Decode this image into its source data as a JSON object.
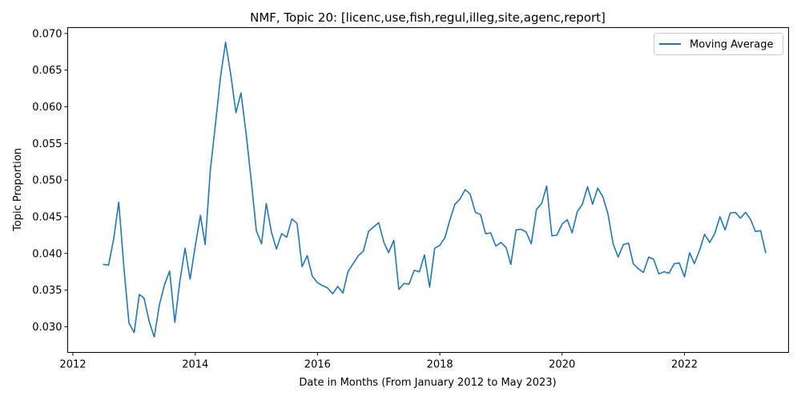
{
  "chart_data": {
    "type": "line",
    "title": "NMF, Topic 20: [licenc,use,fish,regul,illeg,site,agenc,report]",
    "xlabel": "Date in Months (From January 2012 to May 2023)",
    "ylabel": "Topic Proportion",
    "xlim": [
      "2011-12-01",
      "2023-09-15"
    ],
    "ylim": [
      0.0265,
      0.0708
    ],
    "x_ticks": [
      "2012",
      "2014",
      "2016",
      "2018",
      "2020",
      "2022"
    ],
    "y_ticks": [
      "0.030",
      "0.035",
      "0.040",
      "0.045",
      "0.050",
      "0.055",
      "0.060",
      "0.065",
      "0.070"
    ],
    "grid": false,
    "legend_position": "top-right",
    "series": [
      {
        "name": "Moving Average",
        "color": "#1f77b4",
        "x": [
          "2012-07",
          "2012-08",
          "2012-09",
          "2012-10",
          "2012-11",
          "2012-12",
          "2013-01",
          "2013-02",
          "2013-03",
          "2013-04",
          "2013-05",
          "2013-06",
          "2013-07",
          "2013-08",
          "2013-09",
          "2013-10",
          "2013-11",
          "2013-12",
          "2014-01",
          "2014-02",
          "2014-03",
          "2014-04",
          "2014-05",
          "2014-06",
          "2014-07",
          "2014-08",
          "2014-09",
          "2014-10",
          "2014-11",
          "2014-12",
          "2015-01",
          "2015-02",
          "2015-03",
          "2015-04",
          "2015-05",
          "2015-06",
          "2015-07",
          "2015-08",
          "2015-09",
          "2015-10",
          "2015-11",
          "2015-12",
          "2016-01",
          "2016-02",
          "2016-03",
          "2016-04",
          "2016-05",
          "2016-06",
          "2016-07",
          "2016-08",
          "2016-09",
          "2016-10",
          "2016-11",
          "2016-12",
          "2017-01",
          "2017-02",
          "2017-03",
          "2017-04",
          "2017-05",
          "2017-06",
          "2017-07",
          "2017-08",
          "2017-09",
          "2017-10",
          "2017-11",
          "2017-12",
          "2018-01",
          "2018-02",
          "2018-03",
          "2018-04",
          "2018-05",
          "2018-06",
          "2018-07",
          "2018-08",
          "2018-09",
          "2018-10",
          "2018-11",
          "2018-12",
          "2019-01",
          "2019-02",
          "2019-03",
          "2019-04",
          "2019-05",
          "2019-06",
          "2019-07",
          "2019-08",
          "2019-09",
          "2019-10",
          "2019-11",
          "2019-12",
          "2020-01",
          "2020-02",
          "2020-03",
          "2020-04",
          "2020-05",
          "2020-06",
          "2020-07",
          "2020-08",
          "2020-09",
          "2020-10",
          "2020-11",
          "2020-12",
          "2021-01",
          "2021-02",
          "2021-03",
          "2021-04",
          "2021-05",
          "2021-06",
          "2021-07",
          "2021-08",
          "2021-09",
          "2021-10",
          "2021-11",
          "2021-12",
          "2022-01",
          "2022-02",
          "2022-03",
          "2022-04",
          "2022-05",
          "2022-06",
          "2022-07",
          "2022-08",
          "2022-09",
          "2022-10",
          "2022-11",
          "2022-12",
          "2023-01",
          "2023-02",
          "2023-03",
          "2023-04",
          "2023-05"
        ],
        "values": [
          0.0385,
          0.0384,
          0.042,
          0.047,
          0.038,
          0.0305,
          0.0292,
          0.0344,
          0.0339,
          0.0307,
          0.0286,
          0.033,
          0.0357,
          0.0376,
          0.0306,
          0.0362,
          0.0407,
          0.0365,
          0.041,
          0.0452,
          0.0412,
          0.0513,
          0.0575,
          0.0641,
          0.0688,
          0.0644,
          0.0592,
          0.0619,
          0.0563,
          0.05,
          0.0431,
          0.0413,
          0.0468,
          0.0429,
          0.0406,
          0.0427,
          0.0422,
          0.0447,
          0.0441,
          0.0382,
          0.0397,
          0.0369,
          0.036,
          0.0356,
          0.0353,
          0.0345,
          0.0355,
          0.0346,
          0.0375,
          0.0386,
          0.0397,
          0.0403,
          0.043,
          0.0436,
          0.0442,
          0.0415,
          0.0401,
          0.0418,
          0.0351,
          0.0359,
          0.0358,
          0.0377,
          0.0375,
          0.0398,
          0.0354,
          0.0407,
          0.0411,
          0.0422,
          0.0445,
          0.0467,
          0.0474,
          0.0487,
          0.0481,
          0.0456,
          0.0453,
          0.0427,
          0.0428,
          0.041,
          0.0415,
          0.0408,
          0.0385,
          0.0432,
          0.0433,
          0.0429,
          0.0413,
          0.046,
          0.0468,
          0.0492,
          0.0424,
          0.0425,
          0.044,
          0.0446,
          0.0428,
          0.0457,
          0.0467,
          0.0491,
          0.0467,
          0.0489,
          0.0477,
          0.0454,
          0.0413,
          0.0395,
          0.0412,
          0.0414,
          0.0386,
          0.0379,
          0.0374,
          0.0395,
          0.0392,
          0.0372,
          0.0375,
          0.0373,
          0.0386,
          0.0387,
          0.0368,
          0.0401,
          0.0386,
          0.0404,
          0.0426,
          0.0415,
          0.0427,
          0.045,
          0.0432,
          0.0455,
          0.0456,
          0.0448,
          0.0456,
          0.0446,
          0.043,
          0.0431,
          0.0401
        ]
      }
    ]
  }
}
